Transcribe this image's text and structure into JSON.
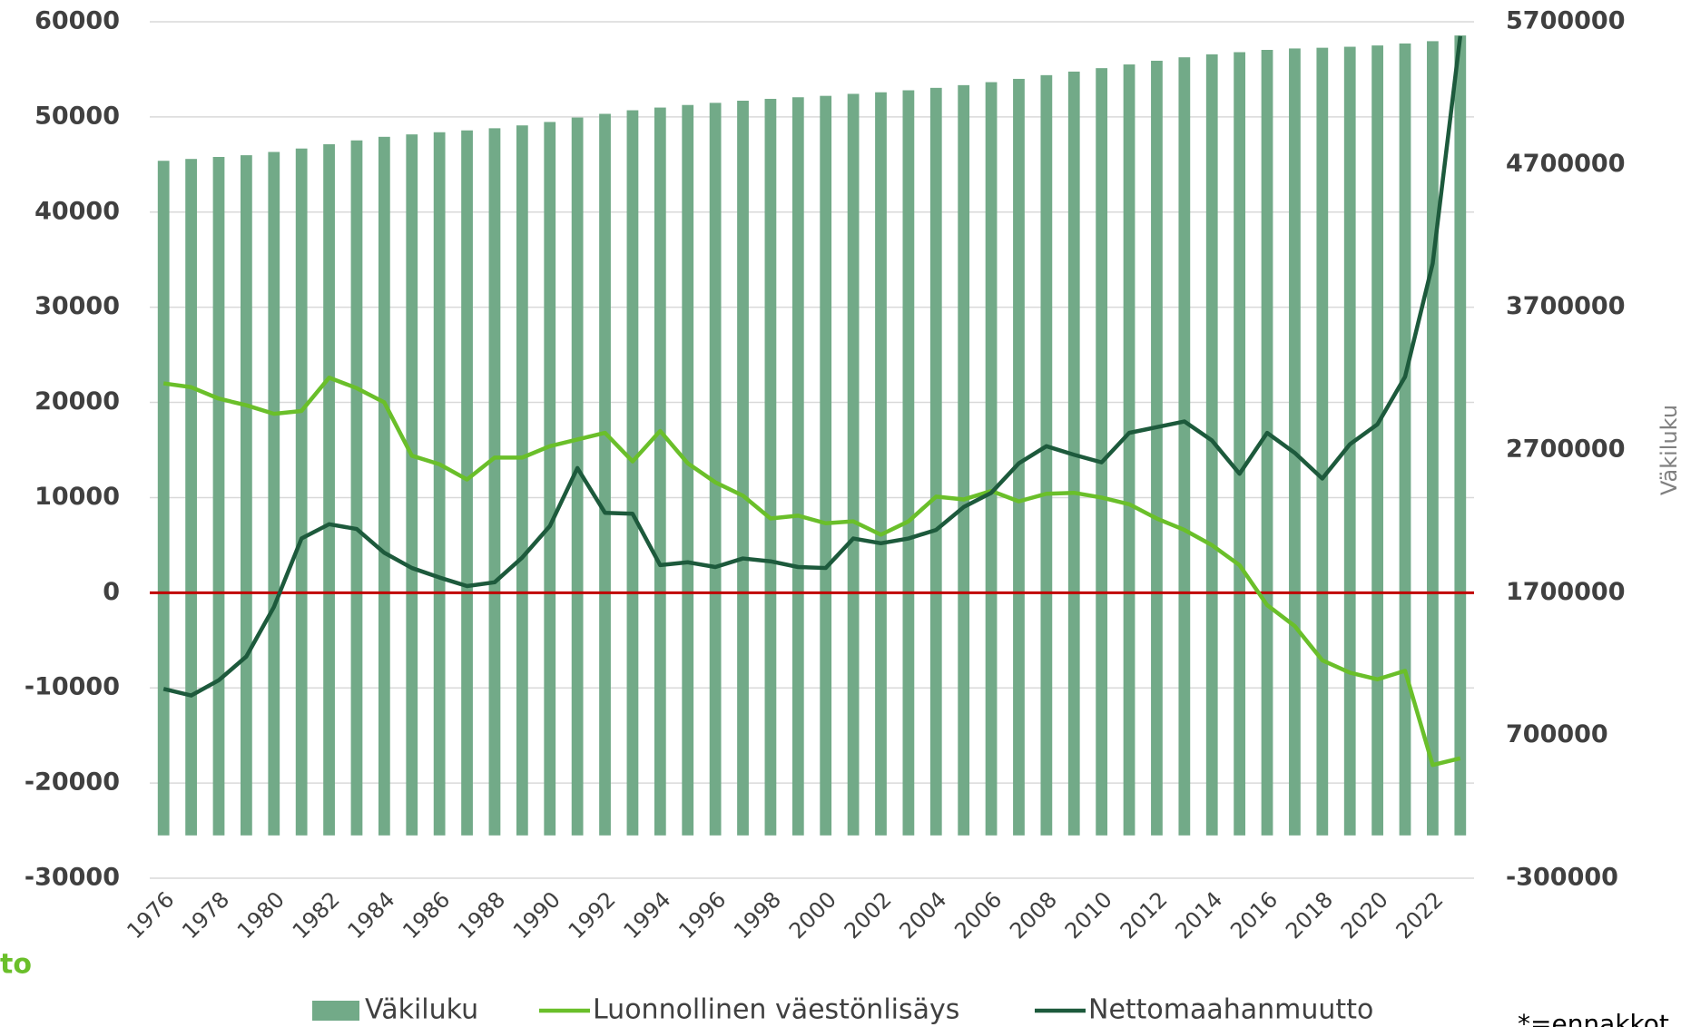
{
  "chart_data": {
    "type": "bar-line",
    "categories": [
      "1976",
      null,
      "1978",
      null,
      "1980",
      null,
      "1982",
      null,
      "1984",
      null,
      "1986",
      null,
      "1988",
      null,
      "1990",
      null,
      "1992",
      null,
      "1994",
      null,
      "1996",
      null,
      "1998",
      null,
      "2000",
      null,
      "2002",
      null,
      "2004",
      null,
      "2006",
      null,
      "2008",
      null,
      "2010",
      null,
      "2012",
      null,
      "2014",
      null,
      "2016",
      null,
      "2018",
      null,
      "2020",
      null,
      "2022",
      null
    ],
    "series": [
      {
        "name": "Väkiluku",
        "type": "bar",
        "axis": "y2",
        "color": "#72aa88",
        "values": [
          4726000,
          4739000,
          4753000,
          4765000,
          4788000,
          4812000,
          4842000,
          4869000,
          4894000,
          4911000,
          4926000,
          4939000,
          4954000,
          4974000,
          4998000,
          5029000,
          5055000,
          5080000,
          5099000,
          5117000,
          5132000,
          5147000,
          5160000,
          5171000,
          5181000,
          5195000,
          5206000,
          5220000,
          5237000,
          5256000,
          5277000,
          5300000,
          5326000,
          5351000,
          5375000,
          5401000,
          5427000,
          5451000,
          5472000,
          5487000,
          5503000,
          5513000,
          5518000,
          5525000,
          5534000,
          5548000,
          5564000,
          5604000
        ]
      },
      {
        "name": "Luonnollinen väestönlisäys",
        "type": "line",
        "color": "#6abf2a",
        "values": [
          22000,
          21600,
          20400,
          19700,
          18800,
          19100,
          22600,
          21500,
          20000,
          14400,
          13500,
          11900,
          14200,
          14200,
          15400,
          16100,
          16800,
          13800,
          17000,
          13600,
          11600,
          10200,
          7800,
          8100,
          7300,
          7500,
          6100,
          7500,
          10100,
          9800,
          10700,
          9600,
          10400,
          10500,
          10000,
          9300,
          7800,
          6600,
          5000,
          2900,
          -1300,
          -3500,
          -7100,
          -8400,
          -9100,
          -8200,
          -18100,
          -17400
        ]
      },
      {
        "name": "Nettomaahanmuutto",
        "type": "line",
        "color": "#1d5a3c",
        "values": [
          -10100,
          -10800,
          -9200,
          -6700,
          -1500,
          5700,
          7200,
          6700,
          4200,
          2600,
          1600,
          700,
          1100,
          3700,
          7000,
          13100,
          8400,
          8300,
          2900,
          3200,
          2700,
          3600,
          3300,
          2700,
          2600,
          5700,
          5200,
          5700,
          6600,
          9000,
          10500,
          13600,
          15400,
          14500,
          13700,
          16800,
          17400,
          18000,
          16000,
          12500,
          16800,
          14700,
          12000,
          15600,
          17700,
          22700,
          34600,
          58500
        ]
      }
    ],
    "ylim": [
      -30000,
      60000
    ],
    "yticks": [
      -30000,
      -20000,
      -10000,
      0,
      10000,
      20000,
      30000,
      40000,
      50000,
      60000
    ],
    "y2lim": [
      -300000,
      5700000
    ],
    "y2ticks": [
      -300000,
      700000,
      1700000,
      2700000,
      3700000,
      4700000,
      5700000
    ],
    "y2label": "Väkiluku",
    "zero_line_color": "#c00000",
    "grid": true,
    "legend": "bottom",
    "annotations": [
      "to",
      "*=ennakkot"
    ]
  }
}
